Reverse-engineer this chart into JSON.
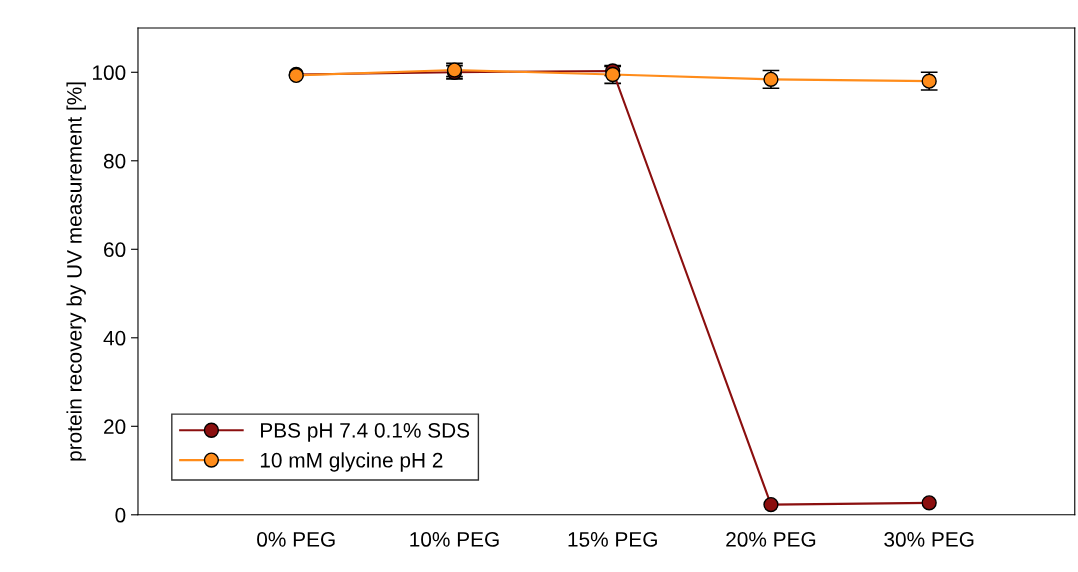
{
  "chart_data": {
    "type": "line",
    "ylabel": "protein recovery by UV measurement [%]",
    "categories": [
      "0% PEG",
      "10% PEG",
      "15% PEG",
      "20% PEG",
      "30% PEG"
    ],
    "series": [
      {
        "name": "PBS pH 7.4 0.1% SDS",
        "color": "#8b0f0f",
        "values": [
          99.5,
          100.0,
          100.3,
          2.3,
          2.7
        ],
        "errors": [
          null,
          1.5,
          1.0,
          null,
          null
        ]
      },
      {
        "name": "10 mM glycine pH 2",
        "color": "#ff8c1a",
        "values": [
          99.3,
          100.5,
          99.5,
          98.4,
          98.0
        ],
        "errors": [
          null,
          1.5,
          2.0,
          2.0,
          2.0
        ]
      }
    ],
    "ylim": [
      0,
      110
    ],
    "yticks": [
      0,
      20,
      40,
      60,
      80,
      100
    ],
    "grid": false,
    "legend": "bottom left",
    "marker": "circle",
    "line_style": "solid"
  }
}
